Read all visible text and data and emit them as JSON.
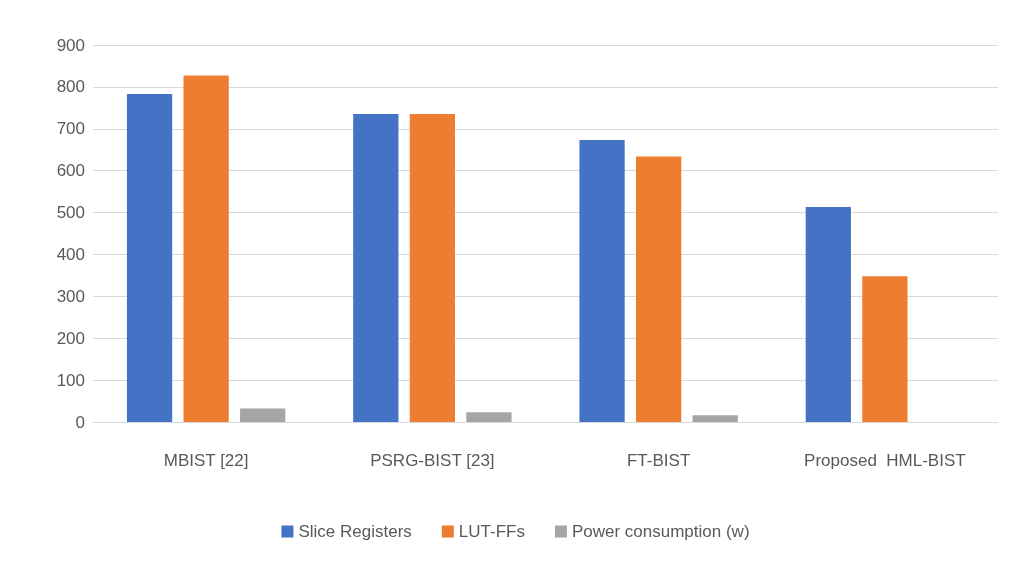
{
  "chart_data": {
    "type": "bar",
    "categories": [
      "MBIST [22]",
      "PSRG-BIST [23]",
      "FT-BIST",
      "Proposed  HML-BIST"
    ],
    "series": [
      {
        "name": "Slice Registers",
        "color": "#4472c4",
        "values": [
          783,
          735,
          673,
          513
        ]
      },
      {
        "name": "LUT-FFs",
        "color": "#ed7d31",
        "values": [
          827,
          735,
          634,
          348
        ]
      },
      {
        "name": "Power consumption (w)",
        "color": "#a5a5a5",
        "values": [
          32,
          23,
          16,
          0
        ]
      }
    ],
    "ylim": [
      0,
      900
    ],
    "yticks": [
      0,
      100,
      200,
      300,
      400,
      500,
      600,
      700,
      800,
      900
    ],
    "grid": "y",
    "legend": "bottom"
  }
}
